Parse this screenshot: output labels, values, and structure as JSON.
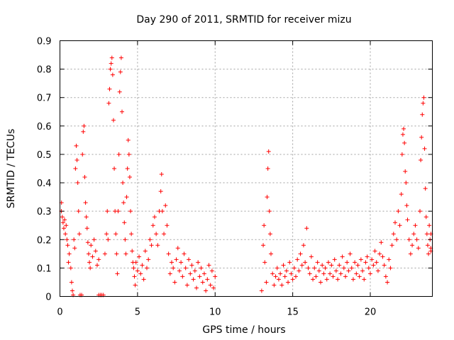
{
  "chart_data": {
    "type": "scatter",
    "title": "Day 290 of 2011, SRMTID for receiver mizu",
    "xlabel": "GPS time / hours",
    "ylabel": "SRMTID / TECUs",
    "xlim": [
      0,
      24
    ],
    "ylim": [
      0,
      0.9
    ],
    "xticks": [
      0,
      5,
      10,
      15,
      20
    ],
    "xtick_labels": [
      "0",
      "5",
      "10",
      "15",
      "20"
    ],
    "yticks": [
      0,
      0.1,
      0.2,
      0.3,
      0.4,
      0.5,
      0.6,
      0.7,
      0.8,
      0.9
    ],
    "ytick_labels": [
      "0",
      "0.1",
      "0.2",
      "0.3",
      "0.4",
      "0.5",
      "0.6",
      "0.7",
      "0.8",
      "0.9"
    ],
    "grid": true,
    "marker": "+",
    "series": [
      {
        "name": "SRMTID",
        "color": "#ff0000",
        "points": [
          [
            0.0,
            0.3
          ],
          [
            0.1,
            0.33
          ],
          [
            0.15,
            0.28
          ],
          [
            0.2,
            0.26
          ],
          [
            0.25,
            0.24
          ],
          [
            0.3,
            0.27
          ],
          [
            0.35,
            0.22
          ],
          [
            0.4,
            0.25
          ],
          [
            0.45,
            0.2
          ],
          [
            0.5,
            0.18
          ],
          [
            0.55,
            0.12
          ],
          [
            0.6,
            0.15
          ],
          [
            0.7,
            0.1
          ],
          [
            0.75,
            0.05
          ],
          [
            0.8,
            0.02
          ],
          [
            0.85,
            0.0
          ],
          [
            0.9,
            0.2
          ],
          [
            0.95,
            0.17
          ],
          [
            1.0,
            0.45
          ],
          [
            1.05,
            0.53
          ],
          [
            1.1,
            0.48
          ],
          [
            1.15,
            0.4
          ],
          [
            1.2,
            0.3
          ],
          [
            1.25,
            0.22
          ],
          [
            1.3,
            0.0
          ],
          [
            1.4,
            0.0
          ],
          [
            1.45,
            0.5
          ],
          [
            1.5,
            0.58
          ],
          [
            1.55,
            0.6
          ],
          [
            1.6,
            0.42
          ],
          [
            1.65,
            0.33
          ],
          [
            1.7,
            0.28
          ],
          [
            1.75,
            0.24
          ],
          [
            1.8,
            0.19
          ],
          [
            1.85,
            0.15
          ],
          [
            1.9,
            0.12
          ],
          [
            1.95,
            0.1
          ],
          [
            2.0,
            0.18
          ],
          [
            2.1,
            0.14
          ],
          [
            2.2,
            0.2
          ],
          [
            2.3,
            0.16
          ],
          [
            2.4,
            0.11
          ],
          [
            2.5,
            0.13
          ],
          [
            2.5,
            0.0
          ],
          [
            2.6,
            0.0
          ],
          [
            2.7,
            0.0
          ],
          [
            2.8,
            0.0
          ],
          [
            2.9,
            0.15
          ],
          [
            3.0,
            0.22
          ],
          [
            3.05,
            0.3
          ],
          [
            3.1,
            0.2
          ],
          [
            3.15,
            0.68
          ],
          [
            3.2,
            0.73
          ],
          [
            3.25,
            0.8
          ],
          [
            3.3,
            0.82
          ],
          [
            3.35,
            0.84
          ],
          [
            3.4,
            0.78
          ],
          [
            3.45,
            0.62
          ],
          [
            3.5,
            0.45
          ],
          [
            3.55,
            0.3
          ],
          [
            3.6,
            0.22
          ],
          [
            3.65,
            0.15
          ],
          [
            3.7,
            0.08
          ],
          [
            3.75,
            0.3
          ],
          [
            3.8,
            0.5
          ],
          [
            3.85,
            0.72
          ],
          [
            3.9,
            0.79
          ],
          [
            3.95,
            0.84
          ],
          [
            4.0,
            0.65
          ],
          [
            4.05,
            0.4
          ],
          [
            4.1,
            0.33
          ],
          [
            4.15,
            0.26
          ],
          [
            4.2,
            0.2
          ],
          [
            4.25,
            0.15
          ],
          [
            4.3,
            0.35
          ],
          [
            4.35,
            0.45
          ],
          [
            4.4,
            0.55
          ],
          [
            4.45,
            0.5
          ],
          [
            4.5,
            0.42
          ],
          [
            4.55,
            0.3
          ],
          [
            4.6,
            0.22
          ],
          [
            4.65,
            0.16
          ],
          [
            4.7,
            0.12
          ],
          [
            4.75,
            0.1
          ],
          [
            4.8,
            0.07
          ],
          [
            4.85,
            0.04
          ],
          [
            4.9,
            0.12
          ],
          [
            5.0,
            0.09
          ],
          [
            5.1,
            0.14
          ],
          [
            5.2,
            0.08
          ],
          [
            5.3,
            0.11
          ],
          [
            5.4,
            0.06
          ],
          [
            5.5,
            0.16
          ],
          [
            5.6,
            0.1
          ],
          [
            5.7,
            0.13
          ],
          [
            5.8,
            0.2
          ],
          [
            5.9,
            0.18
          ],
          [
            6.0,
            0.25
          ],
          [
            6.1,
            0.28
          ],
          [
            6.2,
            0.22
          ],
          [
            6.3,
            0.18
          ],
          [
            6.4,
            0.3
          ],
          [
            6.5,
            0.37
          ],
          [
            6.55,
            0.43
          ],
          [
            6.6,
            0.3
          ],
          [
            6.7,
            0.22
          ],
          [
            6.8,
            0.32
          ],
          [
            6.9,
            0.25
          ],
          [
            7.0,
            0.15
          ],
          [
            7.1,
            0.08
          ],
          [
            7.2,
            0.12
          ],
          [
            7.3,
            0.1
          ],
          [
            7.4,
            0.05
          ],
          [
            7.5,
            0.13
          ],
          [
            7.6,
            0.17
          ],
          [
            7.7,
            0.09
          ],
          [
            7.8,
            0.12
          ],
          [
            7.9,
            0.07
          ],
          [
            8.0,
            0.15
          ],
          [
            8.1,
            0.1
          ],
          [
            8.2,
            0.04
          ],
          [
            8.3,
            0.13
          ],
          [
            8.4,
            0.08
          ],
          [
            8.5,
            0.11
          ],
          [
            8.6,
            0.06
          ],
          [
            8.7,
            0.09
          ],
          [
            8.8,
            0.03
          ],
          [
            8.9,
            0.12
          ],
          [
            9.0,
            0.07
          ],
          [
            9.1,
            0.1
          ],
          [
            9.2,
            0.05
          ],
          [
            9.3,
            0.08
          ],
          [
            9.4,
            0.02
          ],
          [
            9.5,
            0.06
          ],
          [
            9.6,
            0.11
          ],
          [
            9.7,
            0.04
          ],
          [
            9.8,
            0.09
          ],
          [
            9.9,
            0.03
          ],
          [
            10.0,
            0.07
          ],
          [
            13.0,
            0.02
          ],
          [
            13.1,
            0.18
          ],
          [
            13.15,
            0.25
          ],
          [
            13.2,
            0.12
          ],
          [
            13.3,
            0.05
          ],
          [
            13.35,
            0.35
          ],
          [
            13.4,
            0.45
          ],
          [
            13.45,
            0.51
          ],
          [
            13.5,
            0.3
          ],
          [
            13.55,
            0.22
          ],
          [
            13.6,
            0.15
          ],
          [
            13.7,
            0.08
          ],
          [
            13.8,
            0.04
          ],
          [
            13.9,
            0.07
          ],
          [
            14.0,
            0.1
          ],
          [
            14.1,
            0.06
          ],
          [
            14.2,
            0.08
          ],
          [
            14.3,
            0.04
          ],
          [
            14.4,
            0.11
          ],
          [
            14.5,
            0.07
          ],
          [
            14.6,
            0.09
          ],
          [
            14.7,
            0.05
          ],
          [
            14.8,
            0.12
          ],
          [
            14.9,
            0.08
          ],
          [
            15.0,
            0.06
          ],
          [
            15.1,
            0.1
          ],
          [
            15.2,
            0.07
          ],
          [
            15.3,
            0.13
          ],
          [
            15.4,
            0.09
          ],
          [
            15.5,
            0.15
          ],
          [
            15.6,
            0.11
          ],
          [
            15.7,
            0.18
          ],
          [
            15.8,
            0.12
          ],
          [
            15.9,
            0.24
          ],
          [
            16.0,
            0.1
          ],
          [
            16.1,
            0.08
          ],
          [
            16.2,
            0.14
          ],
          [
            16.3,
            0.06
          ],
          [
            16.4,
            0.1
          ],
          [
            16.5,
            0.07
          ],
          [
            16.6,
            0.12
          ],
          [
            16.7,
            0.09
          ],
          [
            16.8,
            0.05
          ],
          [
            16.9,
            0.11
          ],
          [
            17.0,
            0.08
          ],
          [
            17.1,
            0.1
          ],
          [
            17.2,
            0.06
          ],
          [
            17.3,
            0.12
          ],
          [
            17.4,
            0.08
          ],
          [
            17.5,
            0.11
          ],
          [
            17.6,
            0.07
          ],
          [
            17.7,
            0.13
          ],
          [
            17.8,
            0.09
          ],
          [
            17.9,
            0.06
          ],
          [
            18.0,
            0.11
          ],
          [
            18.1,
            0.08
          ],
          [
            18.2,
            0.14
          ],
          [
            18.3,
            0.1
          ],
          [
            18.4,
            0.07
          ],
          [
            18.5,
            0.12
          ],
          [
            18.6,
            0.09
          ],
          [
            18.7,
            0.15
          ],
          [
            18.8,
            0.1
          ],
          [
            18.9,
            0.06
          ],
          [
            19.0,
            0.12
          ],
          [
            19.1,
            0.08
          ],
          [
            19.2,
            0.11
          ],
          [
            19.3,
            0.07
          ],
          [
            19.4,
            0.13
          ],
          [
            19.5,
            0.09
          ],
          [
            19.6,
            0.06
          ],
          [
            19.7,
            0.12
          ],
          [
            19.8,
            0.14
          ],
          [
            19.9,
            0.1
          ],
          [
            20.0,
            0.08
          ],
          [
            20.1,
            0.13
          ],
          [
            20.2,
            0.11
          ],
          [
            20.3,
            0.16
          ],
          [
            20.4,
            0.12
          ],
          [
            20.5,
            0.09
          ],
          [
            20.6,
            0.15
          ],
          [
            20.7,
            0.19
          ],
          [
            20.8,
            0.14
          ],
          [
            20.9,
            0.11
          ],
          [
            21.0,
            0.07
          ],
          [
            21.1,
            0.05
          ],
          [
            21.2,
            0.13
          ],
          [
            21.3,
            0.1
          ],
          [
            21.4,
            0.18
          ],
          [
            21.5,
            0.22
          ],
          [
            21.6,
            0.26
          ],
          [
            21.7,
            0.2
          ],
          [
            21.8,
            0.3
          ],
          [
            21.9,
            0.25
          ],
          [
            22.0,
            0.36
          ],
          [
            22.05,
            0.5
          ],
          [
            22.1,
            0.57
          ],
          [
            22.15,
            0.59
          ],
          [
            22.2,
            0.54
          ],
          [
            22.25,
            0.44
          ],
          [
            22.3,
            0.4
          ],
          [
            22.35,
            0.32
          ],
          [
            22.4,
            0.27
          ],
          [
            22.5,
            0.2
          ],
          [
            22.6,
            0.15
          ],
          [
            22.7,
            0.18
          ],
          [
            22.8,
            0.22
          ],
          [
            22.9,
            0.25
          ],
          [
            23.0,
            0.2
          ],
          [
            23.1,
            0.17
          ],
          [
            23.2,
            0.3
          ],
          [
            23.25,
            0.48
          ],
          [
            23.3,
            0.56
          ],
          [
            23.35,
            0.64
          ],
          [
            23.4,
            0.68
          ],
          [
            23.45,
            0.7
          ],
          [
            23.5,
            0.52
          ],
          [
            23.55,
            0.38
          ],
          [
            23.6,
            0.28
          ],
          [
            23.65,
            0.22
          ],
          [
            23.7,
            0.18
          ],
          [
            23.75,
            0.15
          ],
          [
            23.8,
            0.25
          ],
          [
            23.85,
            0.2
          ],
          [
            23.9,
            0.17
          ],
          [
            23.95,
            0.22
          ],
          [
            24.0,
            0.16
          ]
        ]
      }
    ]
  }
}
